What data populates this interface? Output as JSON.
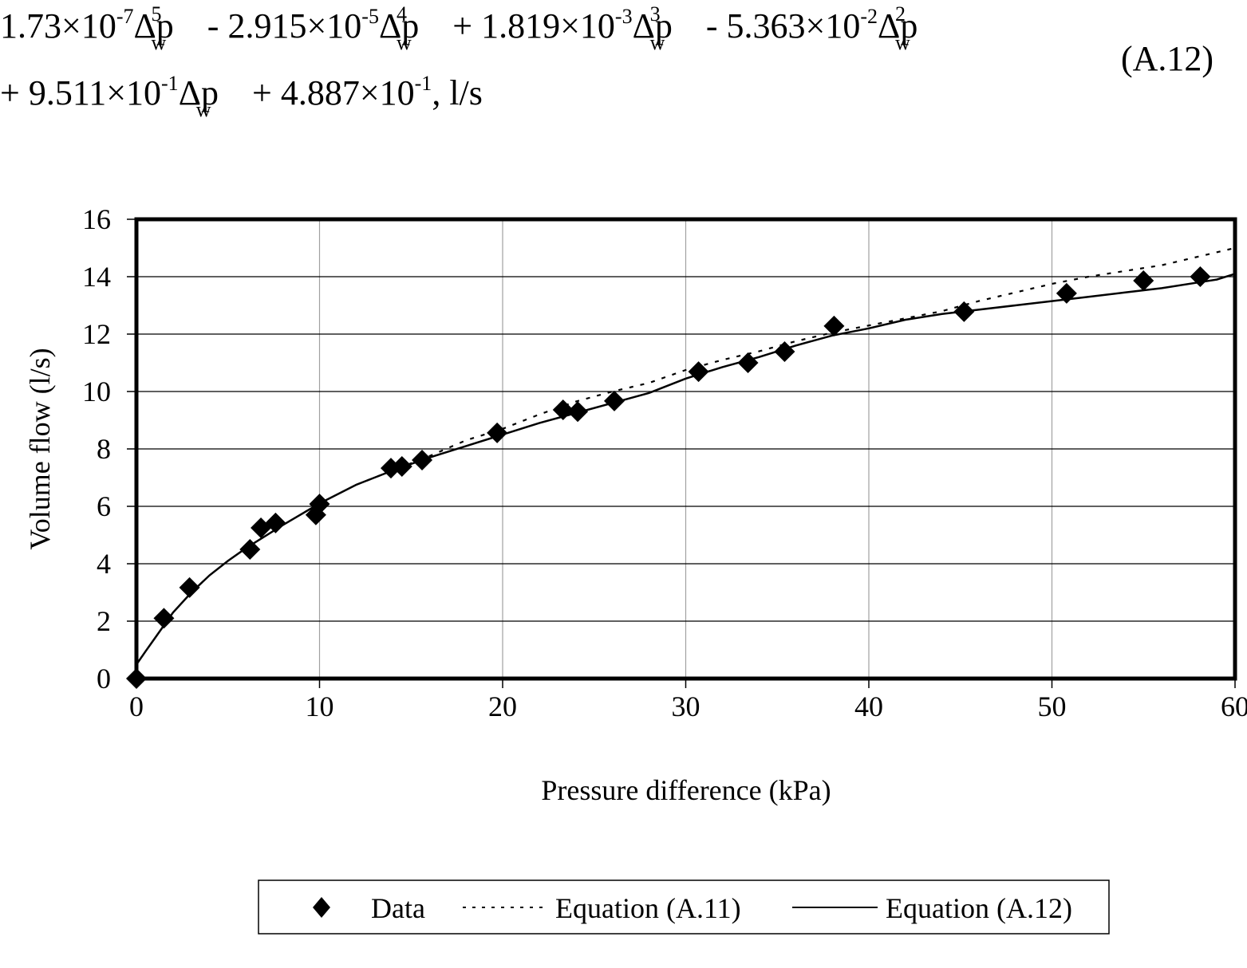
{
  "equation": {
    "line1": [
      {
        "coef": "1.73×10",
        "exp": "-7",
        "power": "5",
        "sign": ""
      },
      {
        "coef": "2.915×10",
        "exp": "-5",
        "power": "4",
        "sign": "- "
      },
      {
        "coef": "1.819×10",
        "exp": "-3",
        "power": "3",
        "sign": "+ "
      },
      {
        "coef": "5.363×10",
        "exp": "-2",
        "power": "2",
        "sign": "- "
      }
    ],
    "line2": [
      {
        "coef": "9.511×10",
        "exp": "-1",
        "power": "",
        "sign": "+ "
      },
      {
        "coef": "4.887×10",
        "exp": "-1",
        "sign": "+ ",
        "suffix": ", l/s"
      }
    ],
    "variable": "Δp",
    "subscript": "w",
    "number": "(A.12)"
  },
  "chart_data": {
    "type": "scatter",
    "title": "",
    "xlabel": "Pressure difference (kPa)",
    "ylabel": "Volume flow (l/s)",
    "xlim": [
      0,
      60
    ],
    "ylim": [
      0,
      16
    ],
    "xticks": [
      0,
      10,
      20,
      30,
      40,
      50,
      60
    ],
    "yticks": [
      0,
      2,
      4,
      6,
      8,
      10,
      12,
      14,
      16
    ],
    "grid": true,
    "legend_position": "bottom",
    "series": [
      {
        "name": "Data",
        "style": "diamond-marker",
        "x": [
          0,
          1.5,
          2.9,
          6.2,
          6.8,
          7.6,
          9.8,
          10.0,
          13.9,
          14.5,
          15.6,
          19.7,
          23.3,
          24.1,
          26.1,
          30.7,
          33.4,
          35.4,
          38.1,
          45.2,
          50.8,
          55.0,
          58.1
        ],
        "y": [
          0,
          2.1,
          3.17,
          4.5,
          5.25,
          5.42,
          5.7,
          6.08,
          7.33,
          7.39,
          7.61,
          8.56,
          9.36,
          9.3,
          9.67,
          10.69,
          11.0,
          11.39,
          12.28,
          12.78,
          13.42,
          13.86,
          14.0
        ]
      },
      {
        "name": "Equation (A.11)",
        "style": "dotted-line",
        "x": [
          12,
          14,
          16,
          18,
          20,
          22,
          24,
          26,
          28,
          30,
          32,
          34,
          36,
          38,
          40,
          42,
          44,
          46,
          48,
          50,
          52,
          54,
          56,
          58,
          60
        ],
        "y": [
          6.75,
          7.25,
          7.75,
          8.3,
          8.7,
          9.2,
          9.65,
          10.0,
          10.3,
          10.75,
          11.1,
          11.4,
          11.75,
          12.05,
          12.3,
          12.55,
          12.8,
          13.15,
          13.45,
          13.75,
          14.0,
          14.2,
          14.4,
          14.7,
          15.0
        ]
      },
      {
        "name": "Equation (A.12)",
        "style": "solid-line",
        "x": [
          0,
          0.5,
          1,
          2,
          3,
          4,
          5,
          6,
          8,
          10,
          12,
          14,
          16,
          18,
          20,
          22,
          24,
          26,
          28,
          30,
          32,
          34,
          36,
          38,
          40,
          42,
          44,
          46,
          48,
          50,
          52,
          54,
          56,
          58,
          59,
          60
        ],
        "y": [
          0.49,
          0.95,
          1.4,
          2.3,
          3.0,
          3.6,
          4.1,
          4.55,
          5.35,
          6.1,
          6.75,
          7.25,
          7.7,
          8.1,
          8.5,
          8.9,
          9.25,
          9.6,
          9.95,
          10.45,
          10.85,
          11.2,
          11.6,
          11.95,
          12.2,
          12.5,
          12.7,
          12.85,
          13.0,
          13.15,
          13.3,
          13.45,
          13.6,
          13.8,
          13.9,
          14.1
        ]
      }
    ]
  },
  "legend": {
    "items": [
      {
        "label": "Data"
      },
      {
        "label": "Equation (A.11)"
      },
      {
        "label": "Equation (A.12)"
      }
    ]
  }
}
